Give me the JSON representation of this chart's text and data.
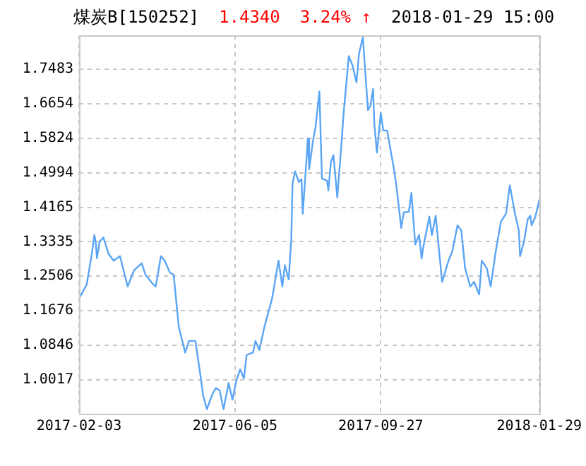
{
  "chart_data": {
    "type": "line",
    "title": "煤炭B[150252]",
    "annotations": [
      "1.4340",
      "3.24% ↑",
      "2018-01-29 15:00"
    ],
    "x": [
      "2017-02-03",
      "2017-02-09",
      "2017-02-13",
      "2017-02-15",
      "2017-02-16",
      "2017-02-17",
      "2017-02-19",
      "2017-02-22",
      "2017-02-26",
      "2017-03-02",
      "2017-03-07",
      "2017-03-13",
      "2017-03-18",
      "2017-03-24",
      "2017-03-27",
      "2017-04-02",
      "2017-04-04",
      "2017-04-08",
      "2017-04-11",
      "2017-04-15",
      "2017-04-18",
      "2017-04-22",
      "2017-04-27",
      "2017-04-30",
      "2017-05-05",
      "2017-05-09",
      "2017-05-11",
      "2017-05-14",
      "2017-05-18",
      "2017-05-21",
      "2017-05-24",
      "2017-05-27",
      "2017-05-31",
      "2017-06-03",
      "2017-06-06",
      "2017-06-09",
      "2017-06-12",
      "2017-06-14",
      "2017-06-19",
      "2017-06-21",
      "2017-06-24",
      "2017-06-28",
      "2017-07-01",
      "2017-07-04",
      "2017-07-09",
      "2017-07-12",
      "2017-07-14",
      "2017-07-17",
      "2017-07-19",
      "2017-07-20",
      "2017-07-22",
      "2017-07-25",
      "2017-07-27",
      "2017-07-28",
      "2017-08-01",
      "2017-08-02",
      "2017-08-05",
      "2017-08-07",
      "2017-08-10",
      "2017-08-12",
      "2017-08-16",
      "2017-08-17",
      "2017-08-19",
      "2017-08-21",
      "2017-08-24",
      "2017-08-27",
      "2017-08-29",
      "2017-09-02",
      "2017-09-05",
      "2017-09-08",
      "2017-09-10",
      "2017-09-13",
      "2017-09-17",
      "2017-09-19",
      "2017-09-21",
      "2017-09-22",
      "2017-09-24",
      "2017-09-27",
      "2017-09-29",
      "2017-10-02",
      "2017-10-07",
      "2017-10-09",
      "2017-10-13",
      "2017-10-15",
      "2017-10-19",
      "2017-10-21",
      "2017-10-24",
      "2017-10-27",
      "2017-10-29",
      "2017-10-30",
      "2017-11-04",
      "2017-11-06",
      "2017-11-09",
      "2017-11-14",
      "2017-11-19",
      "2017-11-22",
      "2017-11-26",
      "2017-11-29",
      "2017-12-02",
      "2017-12-06",
      "2017-12-09",
      "2017-12-13",
      "2017-12-15",
      "2017-12-19",
      "2017-12-22",
      "2017-12-26",
      "2017-12-30",
      "2018-01-03",
      "2018-01-06",
      "2018-01-10",
      "2018-01-13",
      "2018-01-14",
      "2018-01-17",
      "2018-01-20",
      "2018-01-22",
      "2018-01-23",
      "2018-01-26",
      "2018-01-29"
    ],
    "series": [
      {
        "color": "#5aa5f5",
        "values": [
          1.197,
          1.231,
          1.305,
          1.35,
          1.333,
          1.294,
          1.333,
          1.344,
          1.305,
          1.288,
          1.299,
          1.226,
          1.265,
          1.282,
          1.254,
          1.231,
          1.226,
          1.299,
          1.288,
          1.26,
          1.254,
          1.129,
          1.067,
          1.095,
          1.095,
          1.011,
          0.965,
          0.931,
          0.965,
          0.982,
          0.976,
          0.931,
          0.994,
          0.954,
          0.999,
          1.027,
          1.005,
          1.061,
          1.067,
          1.095,
          1.073,
          1.129,
          1.163,
          1.197,
          1.288,
          1.226,
          1.277,
          1.243,
          1.339,
          1.474,
          1.503,
          1.477,
          1.484,
          1.401,
          1.582,
          1.508,
          1.576,
          1.61,
          1.695,
          1.486,
          1.48,
          1.457,
          1.525,
          1.542,
          1.44,
          1.559,
          1.644,
          1.78,
          1.757,
          1.717,
          1.786,
          1.825,
          1.65,
          1.661,
          1.701,
          1.616,
          1.548,
          1.644,
          1.601,
          1.601,
          1.514,
          1.474,
          1.367,
          1.404,
          1.406,
          1.451,
          1.327,
          1.35,
          1.293,
          1.316,
          1.394,
          1.35,
          1.396,
          1.237,
          1.288,
          1.311,
          1.373,
          1.361,
          1.27,
          1.226,
          1.237,
          1.207,
          1.288,
          1.27,
          1.226,
          1.311,
          1.382,
          1.401,
          1.469,
          1.401,
          1.361,
          1.299,
          1.333,
          1.388,
          1.396,
          1.373,
          1.394,
          1.434
        ]
      }
    ],
    "xlim": [
      "2017-02-03",
      "2018-01-29"
    ],
    "xticks": [
      "2017-02-03",
      "2017-06-05",
      "2017-09-27",
      "2018-01-29"
    ],
    "ylim": [
      0.92,
      1.83
    ],
    "yticks": [
      1.0017,
      1.0846,
      1.1676,
      1.2506,
      1.3335,
      1.4165,
      1.4994,
      1.5824,
      1.6654,
      1.7483
    ],
    "grid": true,
    "marker": "none",
    "line_style": "solid"
  }
}
